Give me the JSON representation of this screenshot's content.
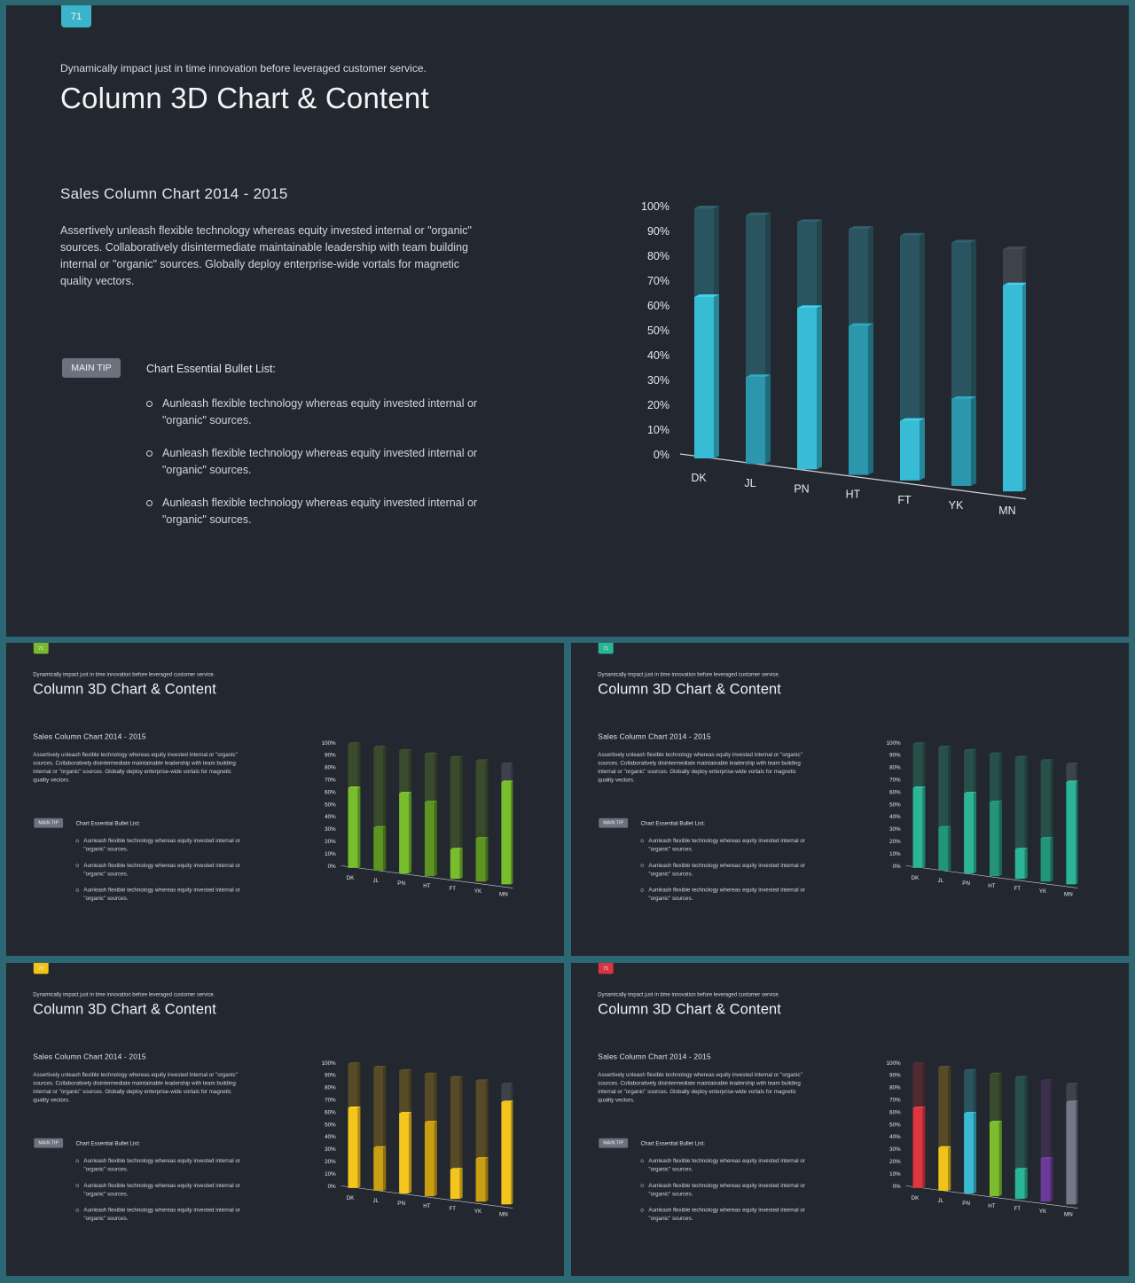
{
  "slide": {
    "number": "71",
    "subtitle": "Dynamically impact just in time innovation  before leveraged customer service.",
    "title": "Column 3D Chart & Content",
    "section_title": "Sales Column  Chart 2014 - 2015",
    "paragraph": "Assertively unleash flexible technology whereas equity invested internal or \"organic\" sources. Collaboratively disintermediate maintainable leadership with team building internal or \"organic\" sources. Globally deploy enterprise-wide vortals for magnetic quality vectors.",
    "tip_label": "MAIN TIP",
    "bullet_list_title": "Chart Essential Bullet List:",
    "bullets": [
      "Aunleash flexible technology whereas equity invested internal or \"organic\" sources.",
      "Aunleash flexible technology whereas equity invested internal or \"organic\" sources.",
      "Aunleash flexible technology whereas equity invested internal or \"organic\" sources."
    ]
  },
  "variants": [
    {
      "badge_color": "#3bb4c9",
      "colors": [
        "#38bcd5",
        "#2b96ac",
        "#38bcd5",
        "#2b96ac",
        "#38bcd5",
        "#2b96ac",
        "#38bcd5"
      ],
      "ghost": [
        "#2a5560",
        "#2a5560",
        "#2a5560",
        "#2a5560",
        "#2a5560",
        "#2a5560",
        "#3e424b"
      ]
    },
    {
      "badge_color": "#7cb82f",
      "colors": [
        "#78bd2c",
        "#5c9522",
        "#78bd2c",
        "#5c9522",
        "#78bd2c",
        "#5c9522",
        "#78bd2c"
      ],
      "ghost": [
        "#3a4a2c",
        "#3a4a2c",
        "#3a4a2c",
        "#3a4a2c",
        "#3a4a2c",
        "#3a4a2c",
        "#3e424b"
      ]
    },
    {
      "badge_color": "#2ab597",
      "colors": [
        "#2bb596",
        "#23937a",
        "#2bb596",
        "#23937a",
        "#2bb596",
        "#23937a",
        "#2bb596"
      ],
      "ghost": [
        "#28504a",
        "#28504a",
        "#28504a",
        "#28504a",
        "#28504a",
        "#28504a",
        "#3e424b"
      ]
    },
    {
      "badge_color": "#f2c418",
      "colors": [
        "#f4c51c",
        "#c99f14",
        "#f4c51c",
        "#c99f14",
        "#f4c51c",
        "#c99f14",
        "#f4c51c"
      ],
      "ghost": [
        "#574a26",
        "#574a26",
        "#574a26",
        "#574a26",
        "#574a26",
        "#574a26",
        "#3e424b"
      ]
    },
    {
      "badge_color": "#d8353f",
      "colors": [
        "#dd3640",
        "#f2c419",
        "#3ab9d3",
        "#7bbd2c",
        "#2ab597",
        "#6b3b9a",
        "#727885"
      ],
      "ghost": [
        "#4f2a31",
        "#574a26",
        "#2a5560",
        "#3a4a2c",
        "#28504a",
        "#3a2f4c",
        "#3e424b"
      ]
    }
  ],
  "chart_data": {
    "type": "bar",
    "categories": [
      "DK",
      "JL",
      "PN",
      "HT",
      "FT",
      "YK",
      "MN"
    ],
    "values": [
      65,
      35,
      65,
      60,
      24,
      35,
      83
    ],
    "y_ticks": [
      "0%",
      "10%",
      "20%",
      "30%",
      "40%",
      "50%",
      "60%",
      "70%",
      "80%",
      "90%",
      "100%"
    ],
    "ylim": [
      0,
      100
    ],
    "title": "Sales Column  Chart 2014 - 2015"
  }
}
